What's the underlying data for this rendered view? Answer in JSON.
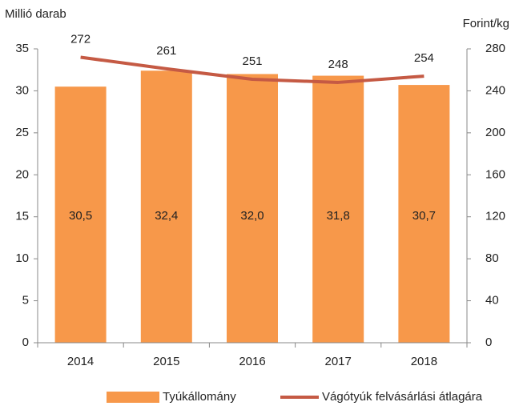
{
  "chart_data": {
    "type": "bar",
    "categories": [
      "2014",
      "2015",
      "2016",
      "2017",
      "2018"
    ],
    "series": [
      {
        "name": "Tyúkállomány",
        "type": "bar",
        "color": "#f7984a",
        "values": [
          30.5,
          32.4,
          32.0,
          31.8,
          30.7
        ],
        "value_labels": [
          "30,5",
          "32,4",
          "32,0",
          "31,8",
          "30,7"
        ]
      },
      {
        "name": "Vágótyúk felvásárlási átlagára",
        "type": "line",
        "axis": "y2",
        "color": "#c55a44",
        "values": [
          272,
          261,
          251,
          248,
          254
        ]
      }
    ],
    "y_label": "Millió darab",
    "y2_label": "Forint/kg",
    "ylim": [
      0,
      35
    ],
    "yticks": [
      0,
      5,
      10,
      15,
      20,
      25,
      30,
      35
    ],
    "y2lim": [
      0,
      280
    ],
    "y2ticks": [
      0,
      40,
      80,
      120,
      160,
      200,
      240,
      280
    ],
    "legend": "bottom"
  }
}
